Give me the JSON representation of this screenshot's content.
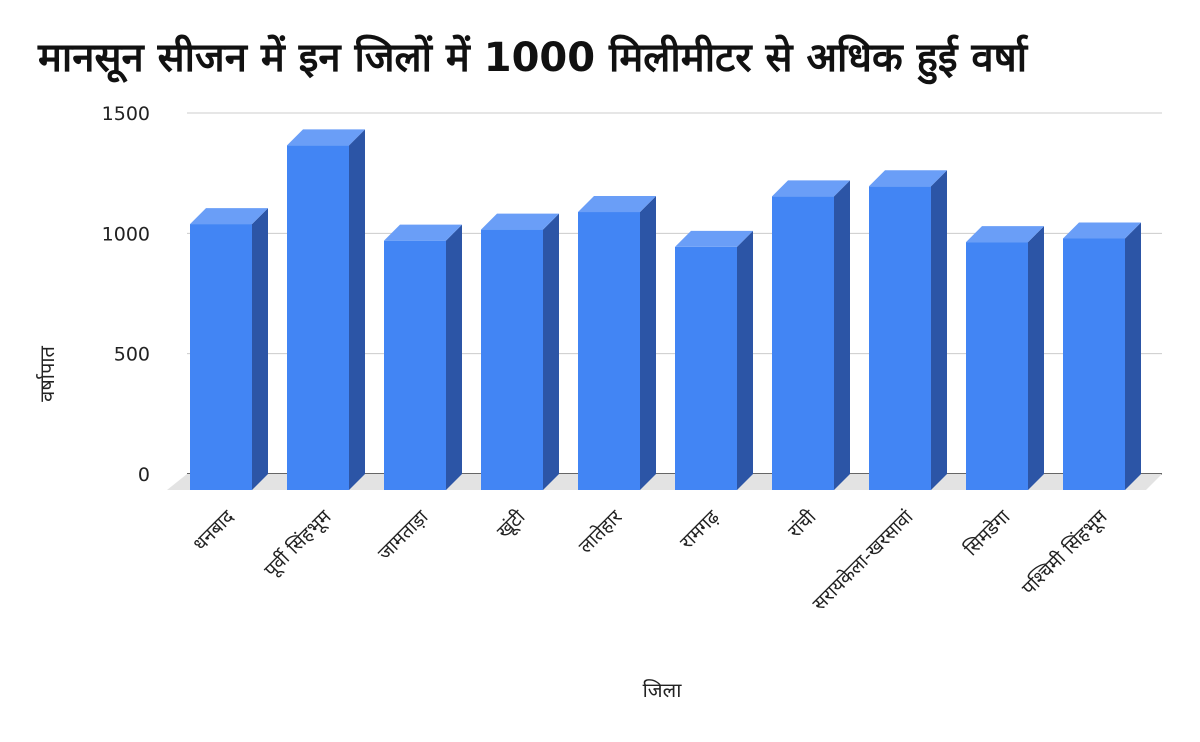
{
  "chart_data": {
    "type": "bar",
    "style": "3d",
    "title": "मानसून सीजन में इन जिलों में 1000 मिलीमीटर से अधिक हुई वर्षा",
    "xlabel": "जिला",
    "ylabel": "वर्षापात",
    "ylim": [
      0,
      1500
    ],
    "yticks": [
      "0",
      "500",
      "1000",
      "1500"
    ],
    "grid": true,
    "legend": "none",
    "categories": [
      "धनबाद",
      "पूर्वी सिंहभूम",
      "जामताड़ा",
      "खूंटी",
      "लातेहार",
      "रामगढ़",
      "रांची",
      "सरायकेला-खरसावां",
      "सिमडेगा",
      "पश्चिमी सिंहभूम"
    ],
    "values": [
      1105,
      1432,
      1036,
      1082,
      1155,
      1010,
      1220,
      1262,
      1030,
      1045
    ],
    "colors": {
      "front": "#4285f4",
      "side": "#2c55a6",
      "top": "#6a9ef7",
      "grid": "#cccccc",
      "floor": "#e3e3e3"
    }
  }
}
